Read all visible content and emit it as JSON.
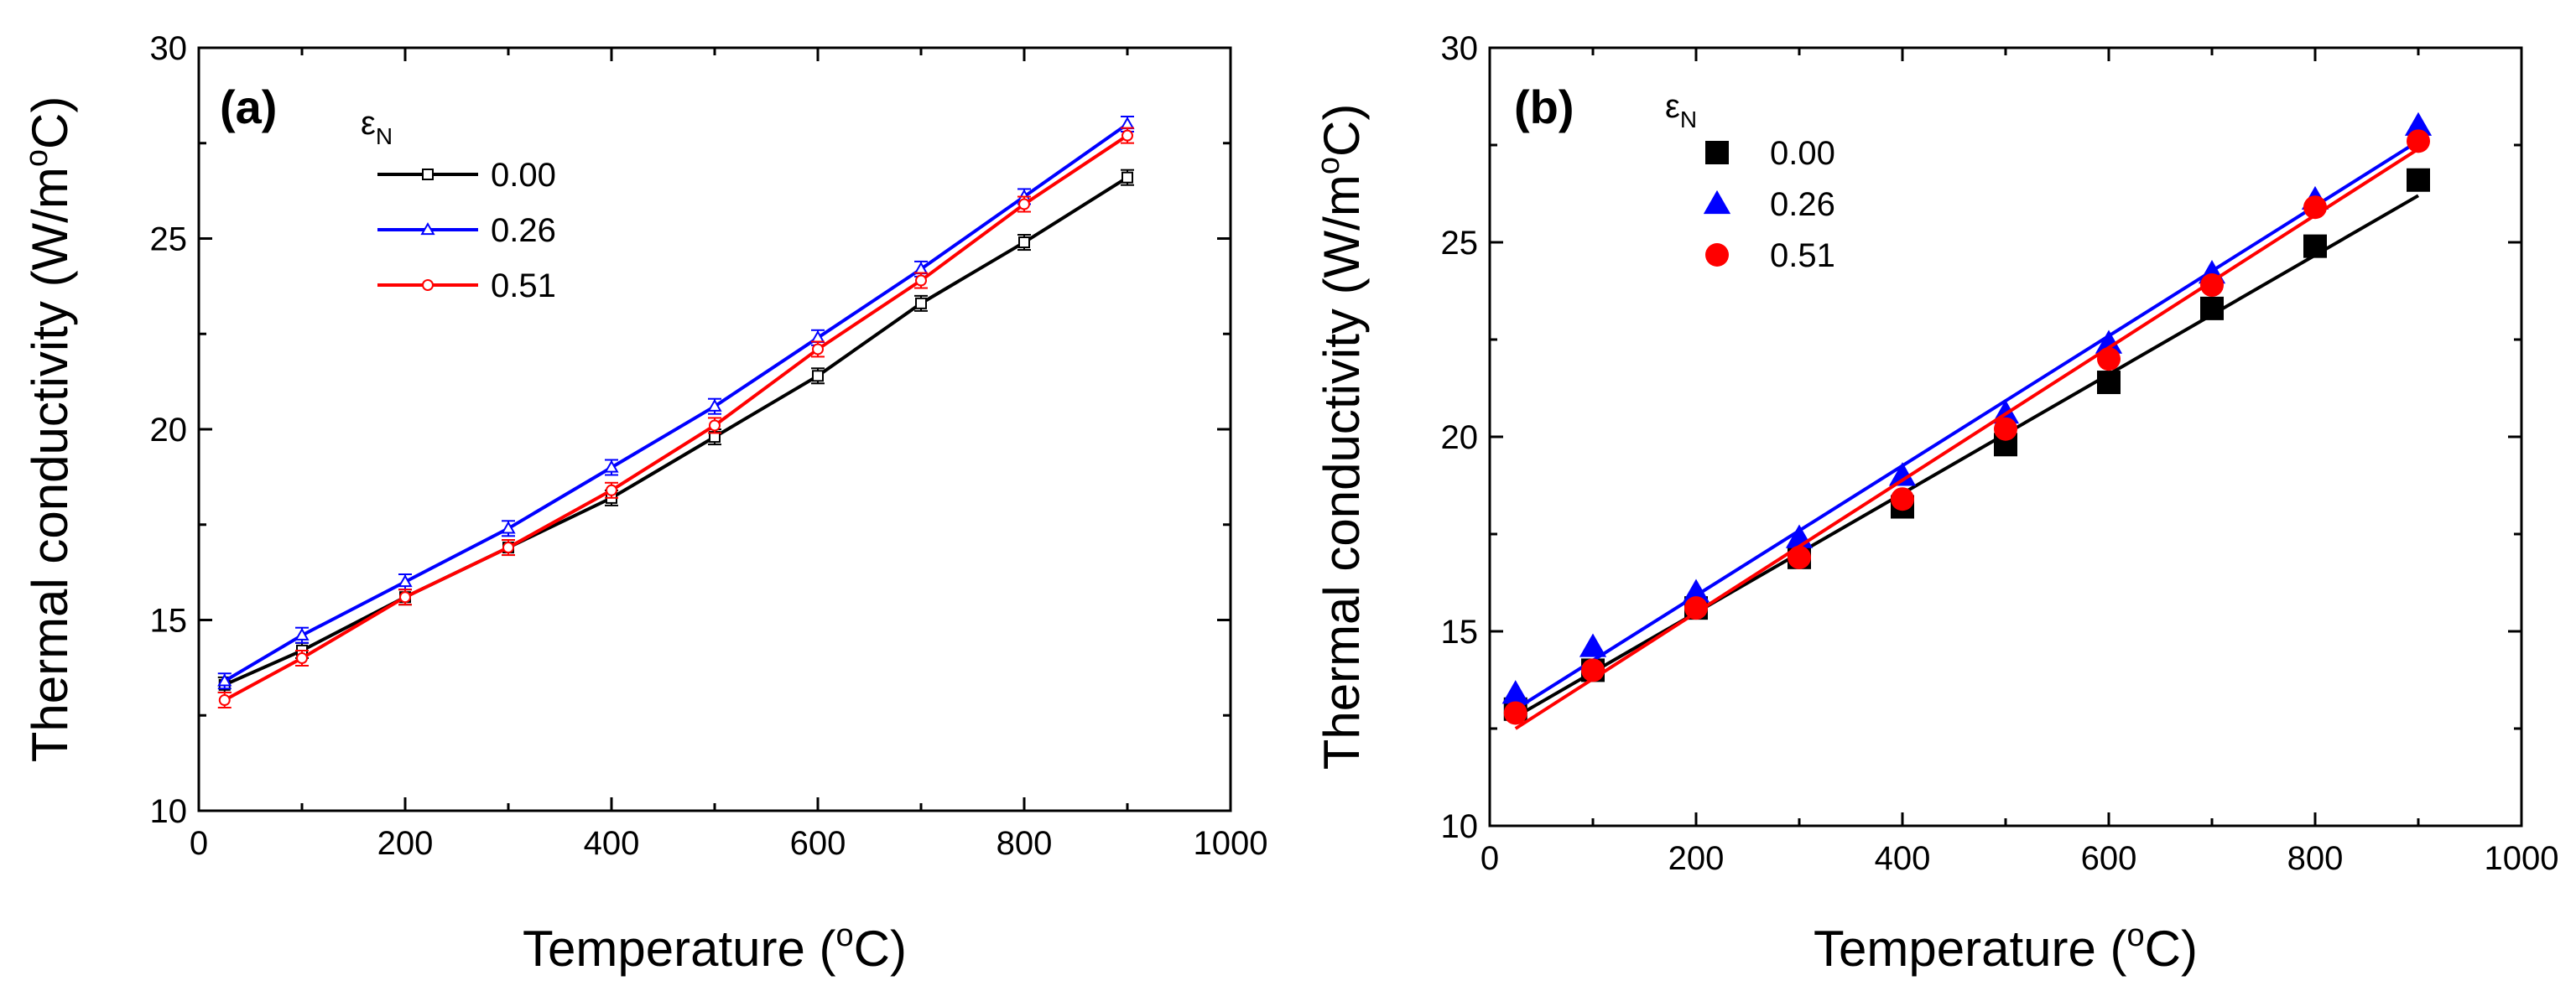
{
  "chart_data": [
    {
      "type": "line",
      "panel_label": "(a)",
      "xlabel_prefix": "Temperature (",
      "xlabel_sup": "o",
      "xlabel_suffix": "C)",
      "ylabel_prefix": "Thermal conductivity (W/m",
      "ylabel_sup": "o",
      "ylabel_suffix": "C)",
      "xlim": [
        0,
        1000
      ],
      "ylim": [
        10,
        30
      ],
      "xticks": [
        0,
        200,
        400,
        600,
        800,
        1000
      ],
      "yticks": [
        10,
        15,
        20,
        25,
        30
      ],
      "legend_title_main": "ε",
      "legend_title_sub": "N",
      "legend_placement": "top-left",
      "x": [
        25,
        100,
        200,
        300,
        400,
        500,
        600,
        700,
        800,
        900
      ],
      "series": [
        {
          "name": "0.00",
          "color": "#000000",
          "marker": "square",
          "values": [
            13.3,
            14.2,
            15.6,
            16.9,
            18.2,
            19.8,
            21.4,
            23.3,
            24.9,
            26.6
          ]
        },
        {
          "name": "0.26",
          "color": "#0000ff",
          "marker": "triangle",
          "values": [
            13.4,
            14.6,
            16.0,
            17.4,
            19.0,
            20.6,
            22.4,
            24.2,
            26.1,
            28.0
          ]
        },
        {
          "name": "0.51",
          "color": "#ff0000",
          "marker": "circle",
          "values": [
            12.9,
            14.0,
            15.6,
            16.9,
            18.4,
            20.1,
            22.1,
            23.9,
            25.9,
            27.7
          ]
        }
      ]
    },
    {
      "type": "scatter",
      "panel_label": "(b)",
      "xlabel_prefix": "Temperature (",
      "xlabel_sup": "o",
      "xlabel_suffix": "C)",
      "ylabel_prefix": "Thermal conductivity (W/m",
      "ylabel_sup": "o",
      "ylabel_suffix": "C)",
      "xlim": [
        0,
        1000
      ],
      "ylim": [
        10,
        30
      ],
      "xticks": [
        0,
        200,
        400,
        600,
        800,
        1000
      ],
      "yticks": [
        10,
        15,
        20,
        25,
        30
      ],
      "legend_title_main": "ε",
      "legend_title_sub": "N",
      "legend_placement": "top-left",
      "x": [
        25,
        100,
        200,
        300,
        400,
        500,
        600,
        700,
        800,
        900
      ],
      "series": [
        {
          "name": "0.00",
          "color": "#000000",
          "marker": "square",
          "values": [
            13.0,
            14.0,
            15.6,
            16.9,
            18.2,
            19.8,
            21.4,
            23.3,
            24.9,
            26.6
          ],
          "fit": [
            [
              25,
              12.8
            ],
            [
              900,
              26.2
            ]
          ]
        },
        {
          "name": "0.26",
          "color": "#0000ff",
          "marker": "triangle",
          "values": [
            13.4,
            14.6,
            16.0,
            17.4,
            19.0,
            20.6,
            22.4,
            24.2,
            26.1,
            28.0
          ],
          "fit": [
            [
              25,
              13.0
            ],
            [
              900,
              27.6
            ]
          ]
        },
        {
          "name": "0.51",
          "color": "#ff0000",
          "marker": "circle",
          "values": [
            12.9,
            14.0,
            15.6,
            16.9,
            18.4,
            20.2,
            22.0,
            23.9,
            25.9,
            27.6
          ],
          "fit": [
            [
              25,
              12.5
            ],
            [
              900,
              27.4
            ]
          ]
        }
      ]
    }
  ]
}
